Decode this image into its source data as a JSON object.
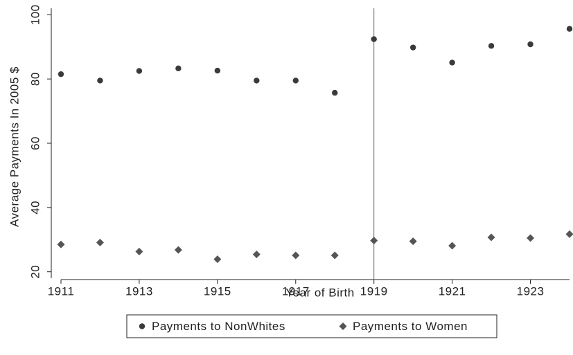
{
  "chart_data": {
    "type": "scatter",
    "x_label": "Year of Birth",
    "y_label": "Average Payments In 2005 $",
    "x": [
      1911,
      1912,
      1913,
      1914,
      1915,
      1916,
      1917,
      1918,
      1919,
      1920,
      1921,
      1922,
      1923,
      1924
    ],
    "series": [
      {
        "name": "Payments to NonWhites",
        "color": "#3a3a3a",
        "marker": "circle",
        "values": [
          81.5,
          79.5,
          82.5,
          83.3,
          82.6,
          79.5,
          79.5,
          75.7,
          92.4,
          89.8,
          85.1,
          90.3,
          90.8,
          95.6
        ]
      },
      {
        "name": "Payments to Women",
        "color": "#555555",
        "marker": "diamond",
        "values": [
          28.5,
          29.1,
          26.3,
          26.8,
          23.9,
          25.4,
          25.1,
          25.1,
          29.7,
          29.5,
          28.1,
          30.7,
          30.5,
          31.7
        ]
      }
    ],
    "xlim": [
      1911,
      1924
    ],
    "xticks": [
      1911,
      1913,
      1915,
      1917,
      1919,
      1921,
      1923
    ],
    "ylim": [
      18,
      102
    ],
    "yticks": [
      20,
      40,
      60,
      80,
      100
    ],
    "vline": 1919,
    "legend": "bottom"
  }
}
